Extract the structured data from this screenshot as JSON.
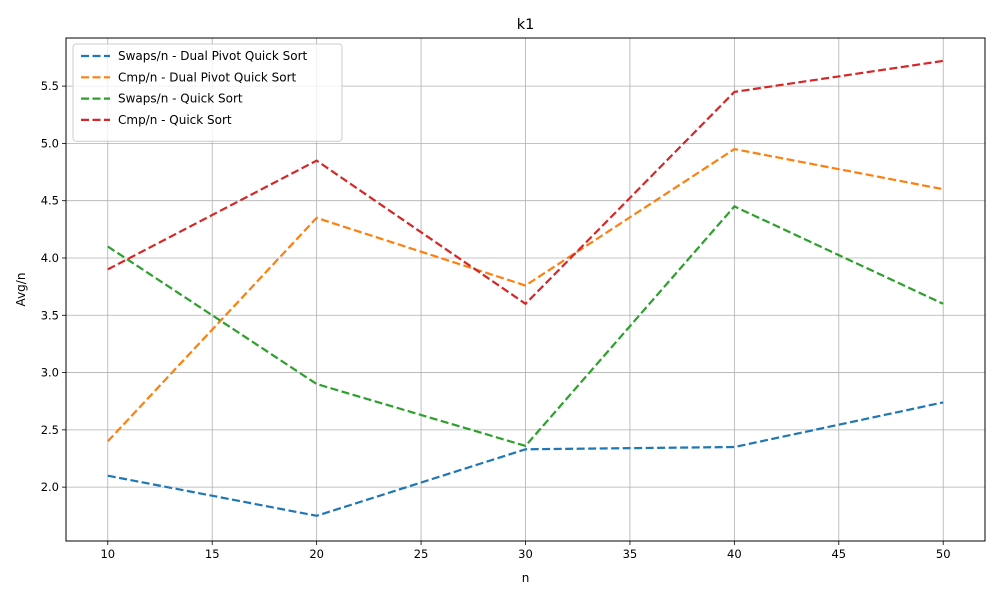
{
  "chart_data": {
    "type": "line",
    "title": "k1",
    "xlabel": "n",
    "ylabel": "Avg/n",
    "x": [
      10,
      20,
      30,
      40,
      50
    ],
    "xlim": [
      8,
      52
    ],
    "ylim": [
      1.53,
      5.92
    ],
    "xticks": [
      10,
      15,
      20,
      25,
      30,
      35,
      40,
      45,
      50
    ],
    "yticks": [
      2.0,
      2.5,
      3.0,
      3.5,
      4.0,
      4.5,
      5.0,
      5.5
    ],
    "xtick_labels": [
      "10",
      "15",
      "20",
      "25",
      "30",
      "35",
      "40",
      "45",
      "50"
    ],
    "ytick_labels": [
      "2.0",
      "2.5",
      "3.0",
      "3.5",
      "4.0",
      "4.5",
      "5.0",
      "5.5"
    ],
    "grid": true,
    "legend_position": "top-left",
    "line_style": "dashed",
    "series": [
      {
        "name": "Swaps/n - Dual Pivot Quick Sort",
        "color": "#1f77b4",
        "values": [
          2.1,
          1.75,
          2.33,
          2.35,
          2.74
        ]
      },
      {
        "name": "Cmp/n - Dual Pivot Quick Sort",
        "color": "#ff7f0e",
        "values": [
          2.4,
          4.35,
          3.76,
          4.95,
          4.6
        ]
      },
      {
        "name": "Swaps/n - Quick Sort",
        "color": "#2ca02c",
        "values": [
          4.1,
          2.9,
          2.36,
          4.45,
          3.6
        ]
      },
      {
        "name": "Cmp/n - Quick Sort",
        "color": "#d62728",
        "values": [
          3.9,
          4.85,
          3.6,
          5.45,
          5.72
        ]
      }
    ]
  }
}
